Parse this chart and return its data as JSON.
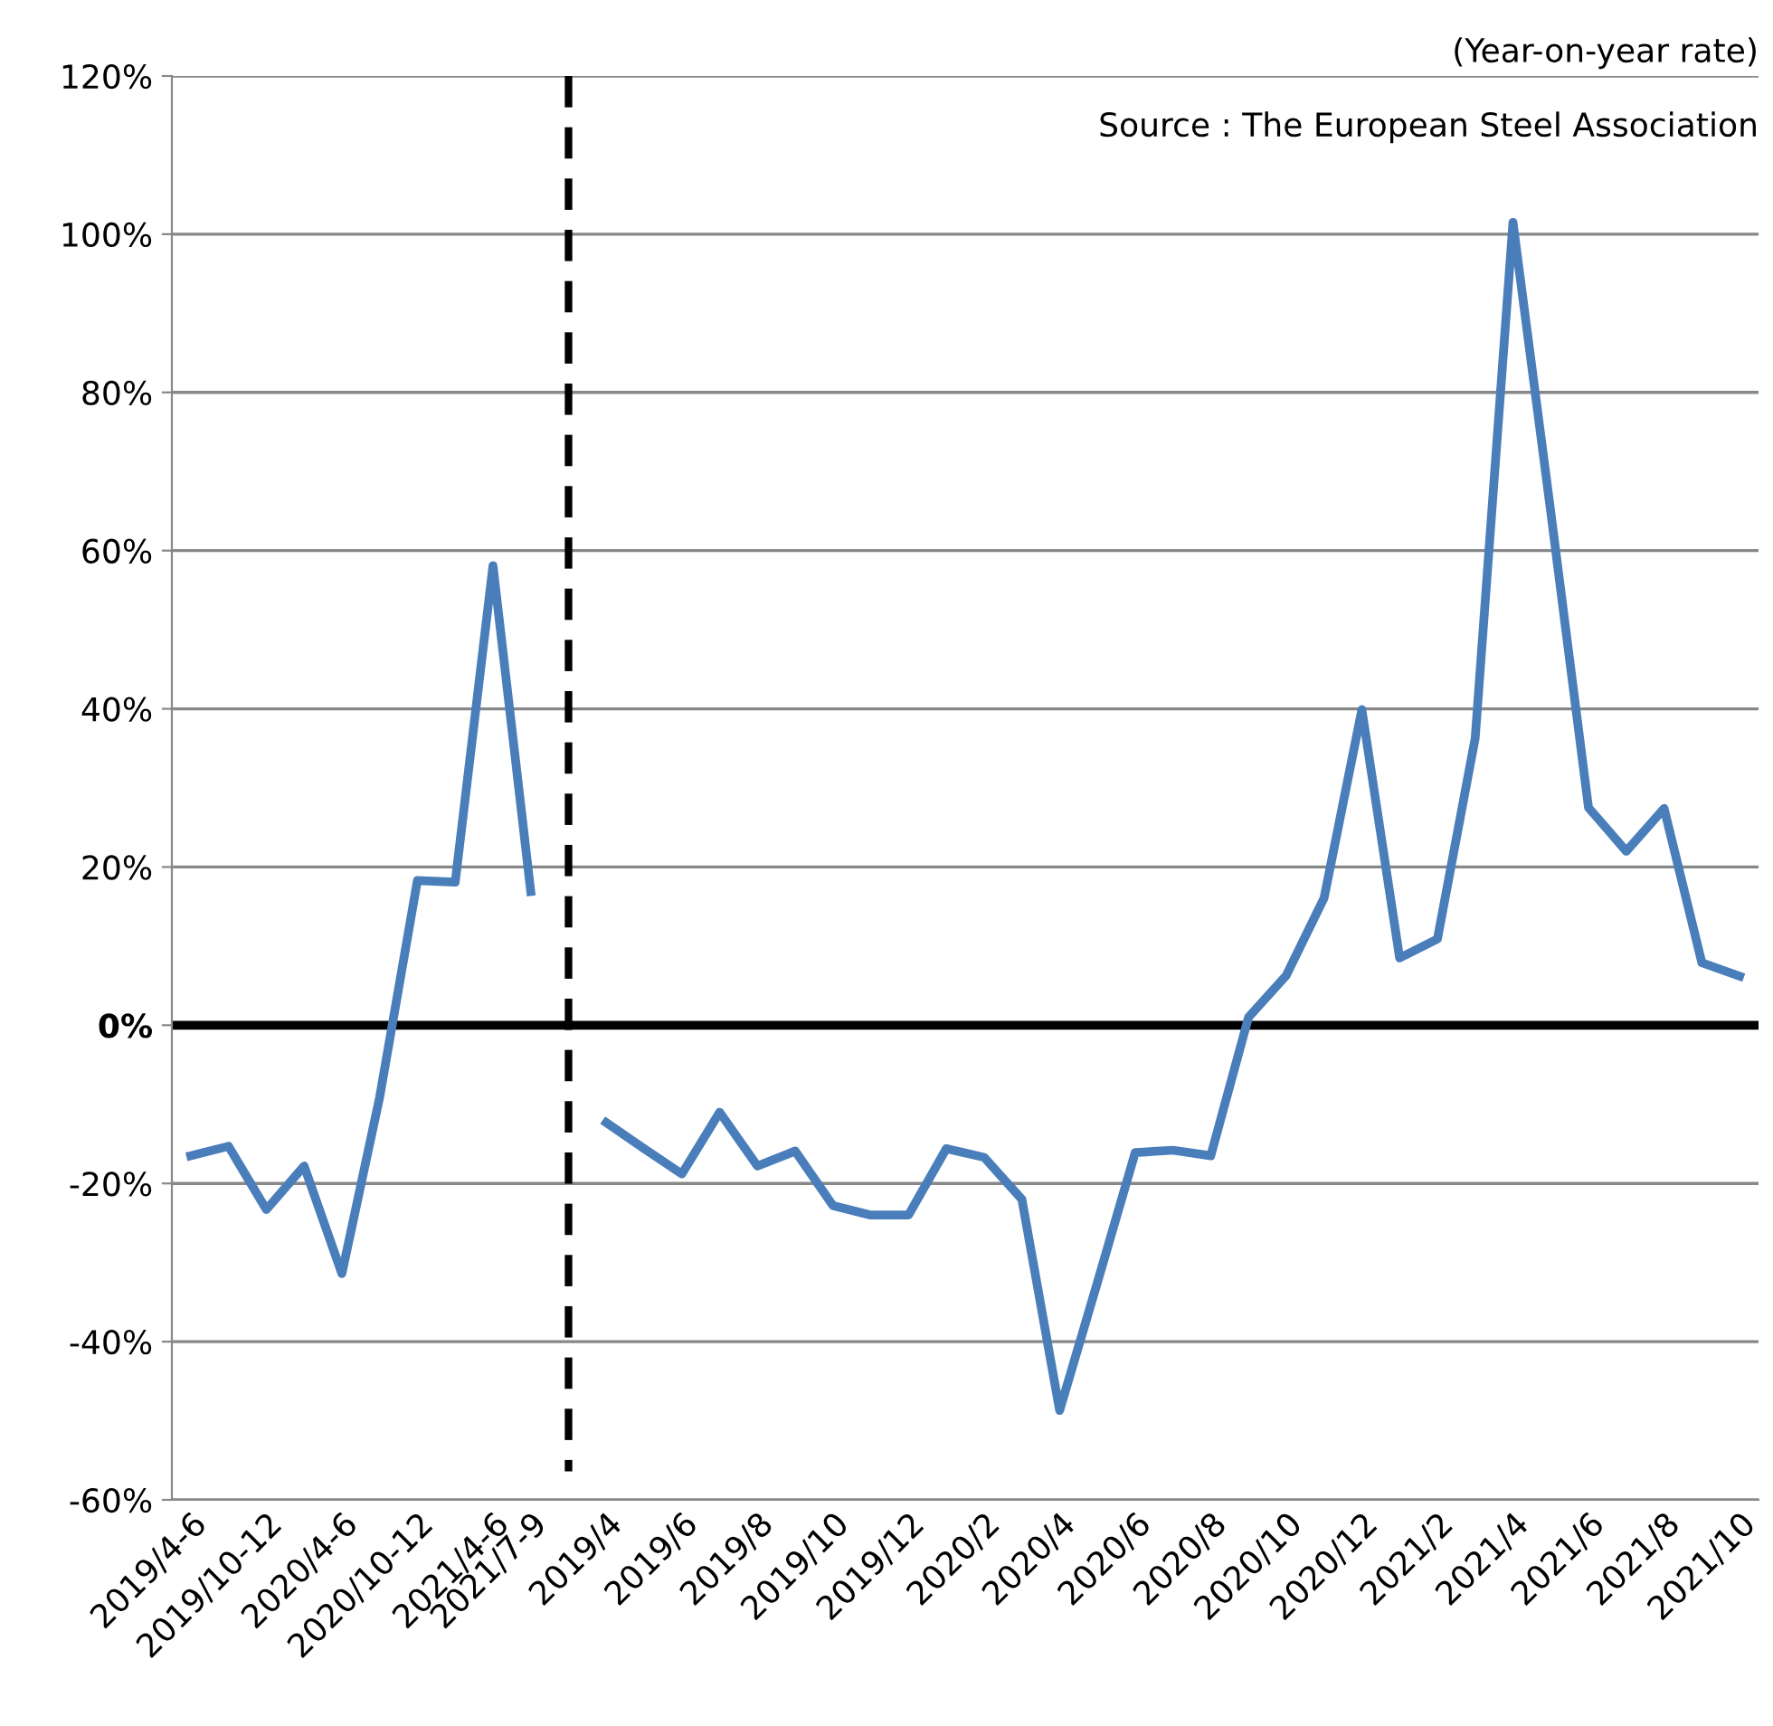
{
  "chart_data": {
    "type": "line",
    "categories": [
      "2019/4-6",
      null,
      "2019/10-12",
      null,
      "2020/4-6",
      null,
      "2020/10-12",
      null,
      "2021/4-6",
      "2021/7-9",
      null,
      "2019/4",
      null,
      "2019/6",
      null,
      "2019/8",
      null,
      "2019/10",
      null,
      "2019/12",
      null,
      "2020/2",
      null,
      "2020/4",
      null,
      "2020/6",
      null,
      "2020/8",
      null,
      "2020/10",
      null,
      "2020/12",
      null,
      "2021/2",
      null,
      "2021/4",
      null,
      "2021/6",
      null,
      "2021/8",
      null,
      "2021/10"
    ],
    "series": [
      {
        "color": "#4a7ebb",
        "values": [
          -16.5,
          -15.3,
          -23.3,
          -17.8,
          -31.4,
          -9.1,
          18.3,
          18.1,
          58.1,
          16.9,
          null,
          null,
          null,
          null,
          null,
          null,
          null,
          null,
          null,
          null,
          null,
          null,
          null,
          null,
          null,
          null,
          null,
          null,
          null,
          null,
          null,
          null,
          null,
          null,
          null,
          null,
          null,
          null,
          null,
          null,
          null,
          null
        ]
      },
      {
        "color": "#4a7ebb",
        "values": [
          null,
          null,
          null,
          null,
          null,
          null,
          null,
          null,
          null,
          null,
          null,
          -12.3,
          -15.6,
          -18.8,
          -11.0,
          -17.8,
          -15.9,
          -22.8,
          -24.0,
          -24.0,
          -15.6,
          -16.7,
          -22.0,
          -48.7,
          -32.5,
          -16.1,
          -15.8,
          -16.5,
          1.0,
          6.3,
          16.1,
          39.9,
          8.5,
          10.9,
          36.3,
          101.5,
          64.9,
          27.5,
          22.0,
          27.4,
          7.9,
          6.2
        ]
      }
    ],
    "ylim": [
      -60,
      120
    ],
    "yticks": [
      {
        "value": -60,
        "label": "-60%"
      },
      {
        "value": -40,
        "label": "-40%"
      },
      {
        "value": -20,
        "label": "-20%"
      },
      {
        "value": 0,
        "label": "0%"
      },
      {
        "value": 20,
        "label": "20%"
      },
      {
        "value": 40,
        "label": "40%"
      },
      {
        "value": 60,
        "label": "60%"
      },
      {
        "value": 80,
        "label": "80%"
      },
      {
        "value": 100,
        "label": "100%"
      },
      {
        "value": 120,
        "label": "120%"
      }
    ],
    "grid": "y",
    "line_style": "solid",
    "ref_lines": [
      {
        "axis": "y",
        "value": 0,
        "color": "#000000",
        "line_style": "solid"
      }
    ],
    "annotations": [
      "(Year-on-year rate)",
      "Source : The European Steel Association"
    ]
  }
}
